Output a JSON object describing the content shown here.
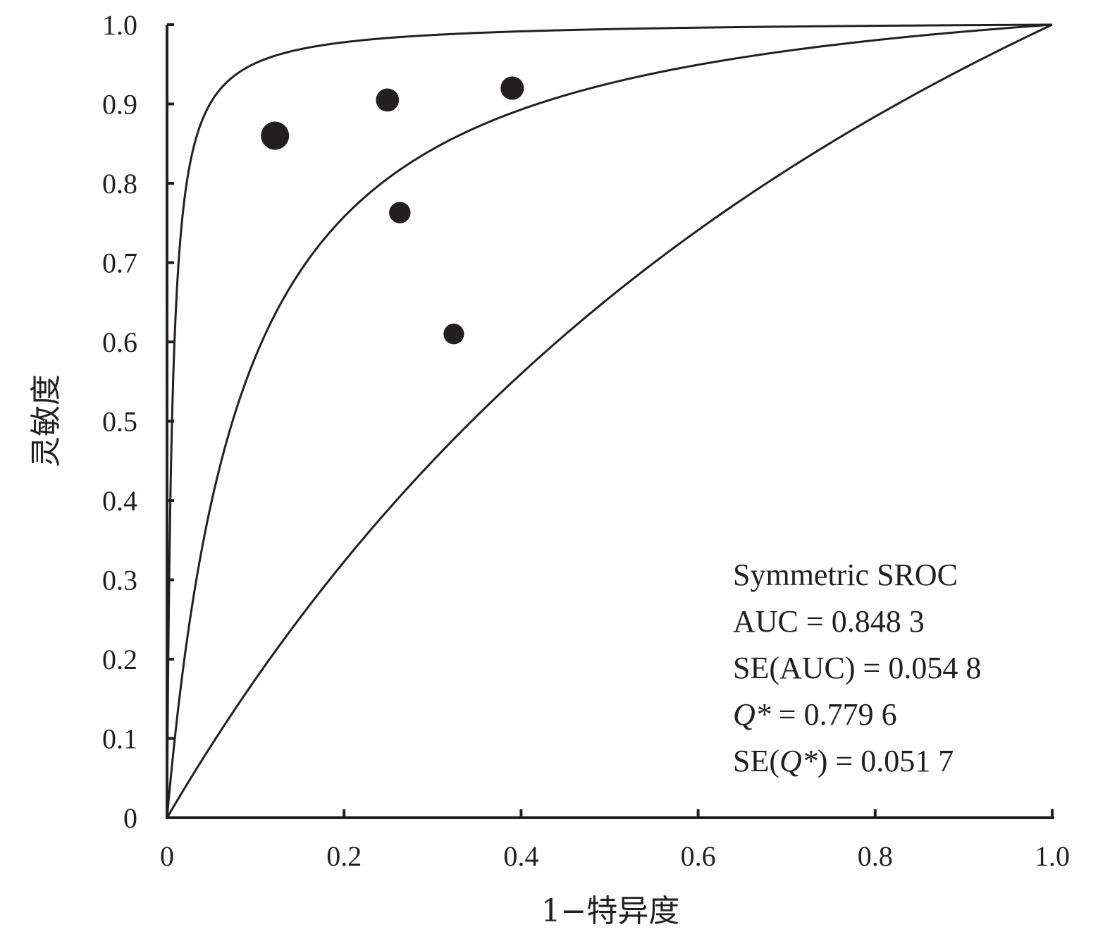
{
  "chart_data": {
    "type": "scatter",
    "title": "",
    "xlabel": "1−特异度",
    "ylabel": "灵敏度",
    "xlim": [
      0,
      1
    ],
    "ylim": [
      0,
      1
    ],
    "x_ticks": [
      "0",
      "0.2",
      "0.4",
      "0.6",
      "0.8",
      "1.0"
    ],
    "y_ticks": [
      "0",
      "0.1",
      "0.2",
      "0.3",
      "0.4",
      "0.5",
      "0.6",
      "0.7",
      "0.8",
      "0.9",
      "1.0"
    ],
    "x_tick_values": [
      0,
      0.2,
      0.4,
      0.6,
      0.8,
      1.0
    ],
    "y_tick_values": [
      0,
      0.1,
      0.2,
      0.3,
      0.4,
      0.5,
      0.6,
      0.7,
      0.8,
      0.9,
      1.0
    ],
    "grid": false,
    "color": "#231f20",
    "points": [
      {
        "x": 0.122,
        "y": 0.86,
        "weight": 1.0
      },
      {
        "x": 0.249,
        "y": 0.905,
        "weight": 0.7
      },
      {
        "x": 0.39,
        "y": 0.92,
        "weight": 0.72
      },
      {
        "x": 0.263,
        "y": 0.763,
        "weight": 0.6
      },
      {
        "x": 0.324,
        "y": 0.61,
        "weight": 0.55
      }
    ],
    "curves": [
      {
        "type": "sroc_symmetric",
        "Q": 0.7796
      },
      {
        "type": "sroc_symmetric",
        "Q": 0.93
      },
      {
        "type": "sroc_symmetric",
        "Q": 0.58
      }
    ],
    "annotation": [
      {
        "text": "Symmetric SROC"
      },
      {
        "text": "AUC = 0.848 3"
      },
      {
        "text": "SE(AUC) = 0.054 8"
      },
      {
        "label": "Q*",
        "text": " = 0.779 6"
      },
      {
        "prefix": "SE(",
        "label": "Q*",
        "text": ") = 0.051 7"
      }
    ]
  }
}
